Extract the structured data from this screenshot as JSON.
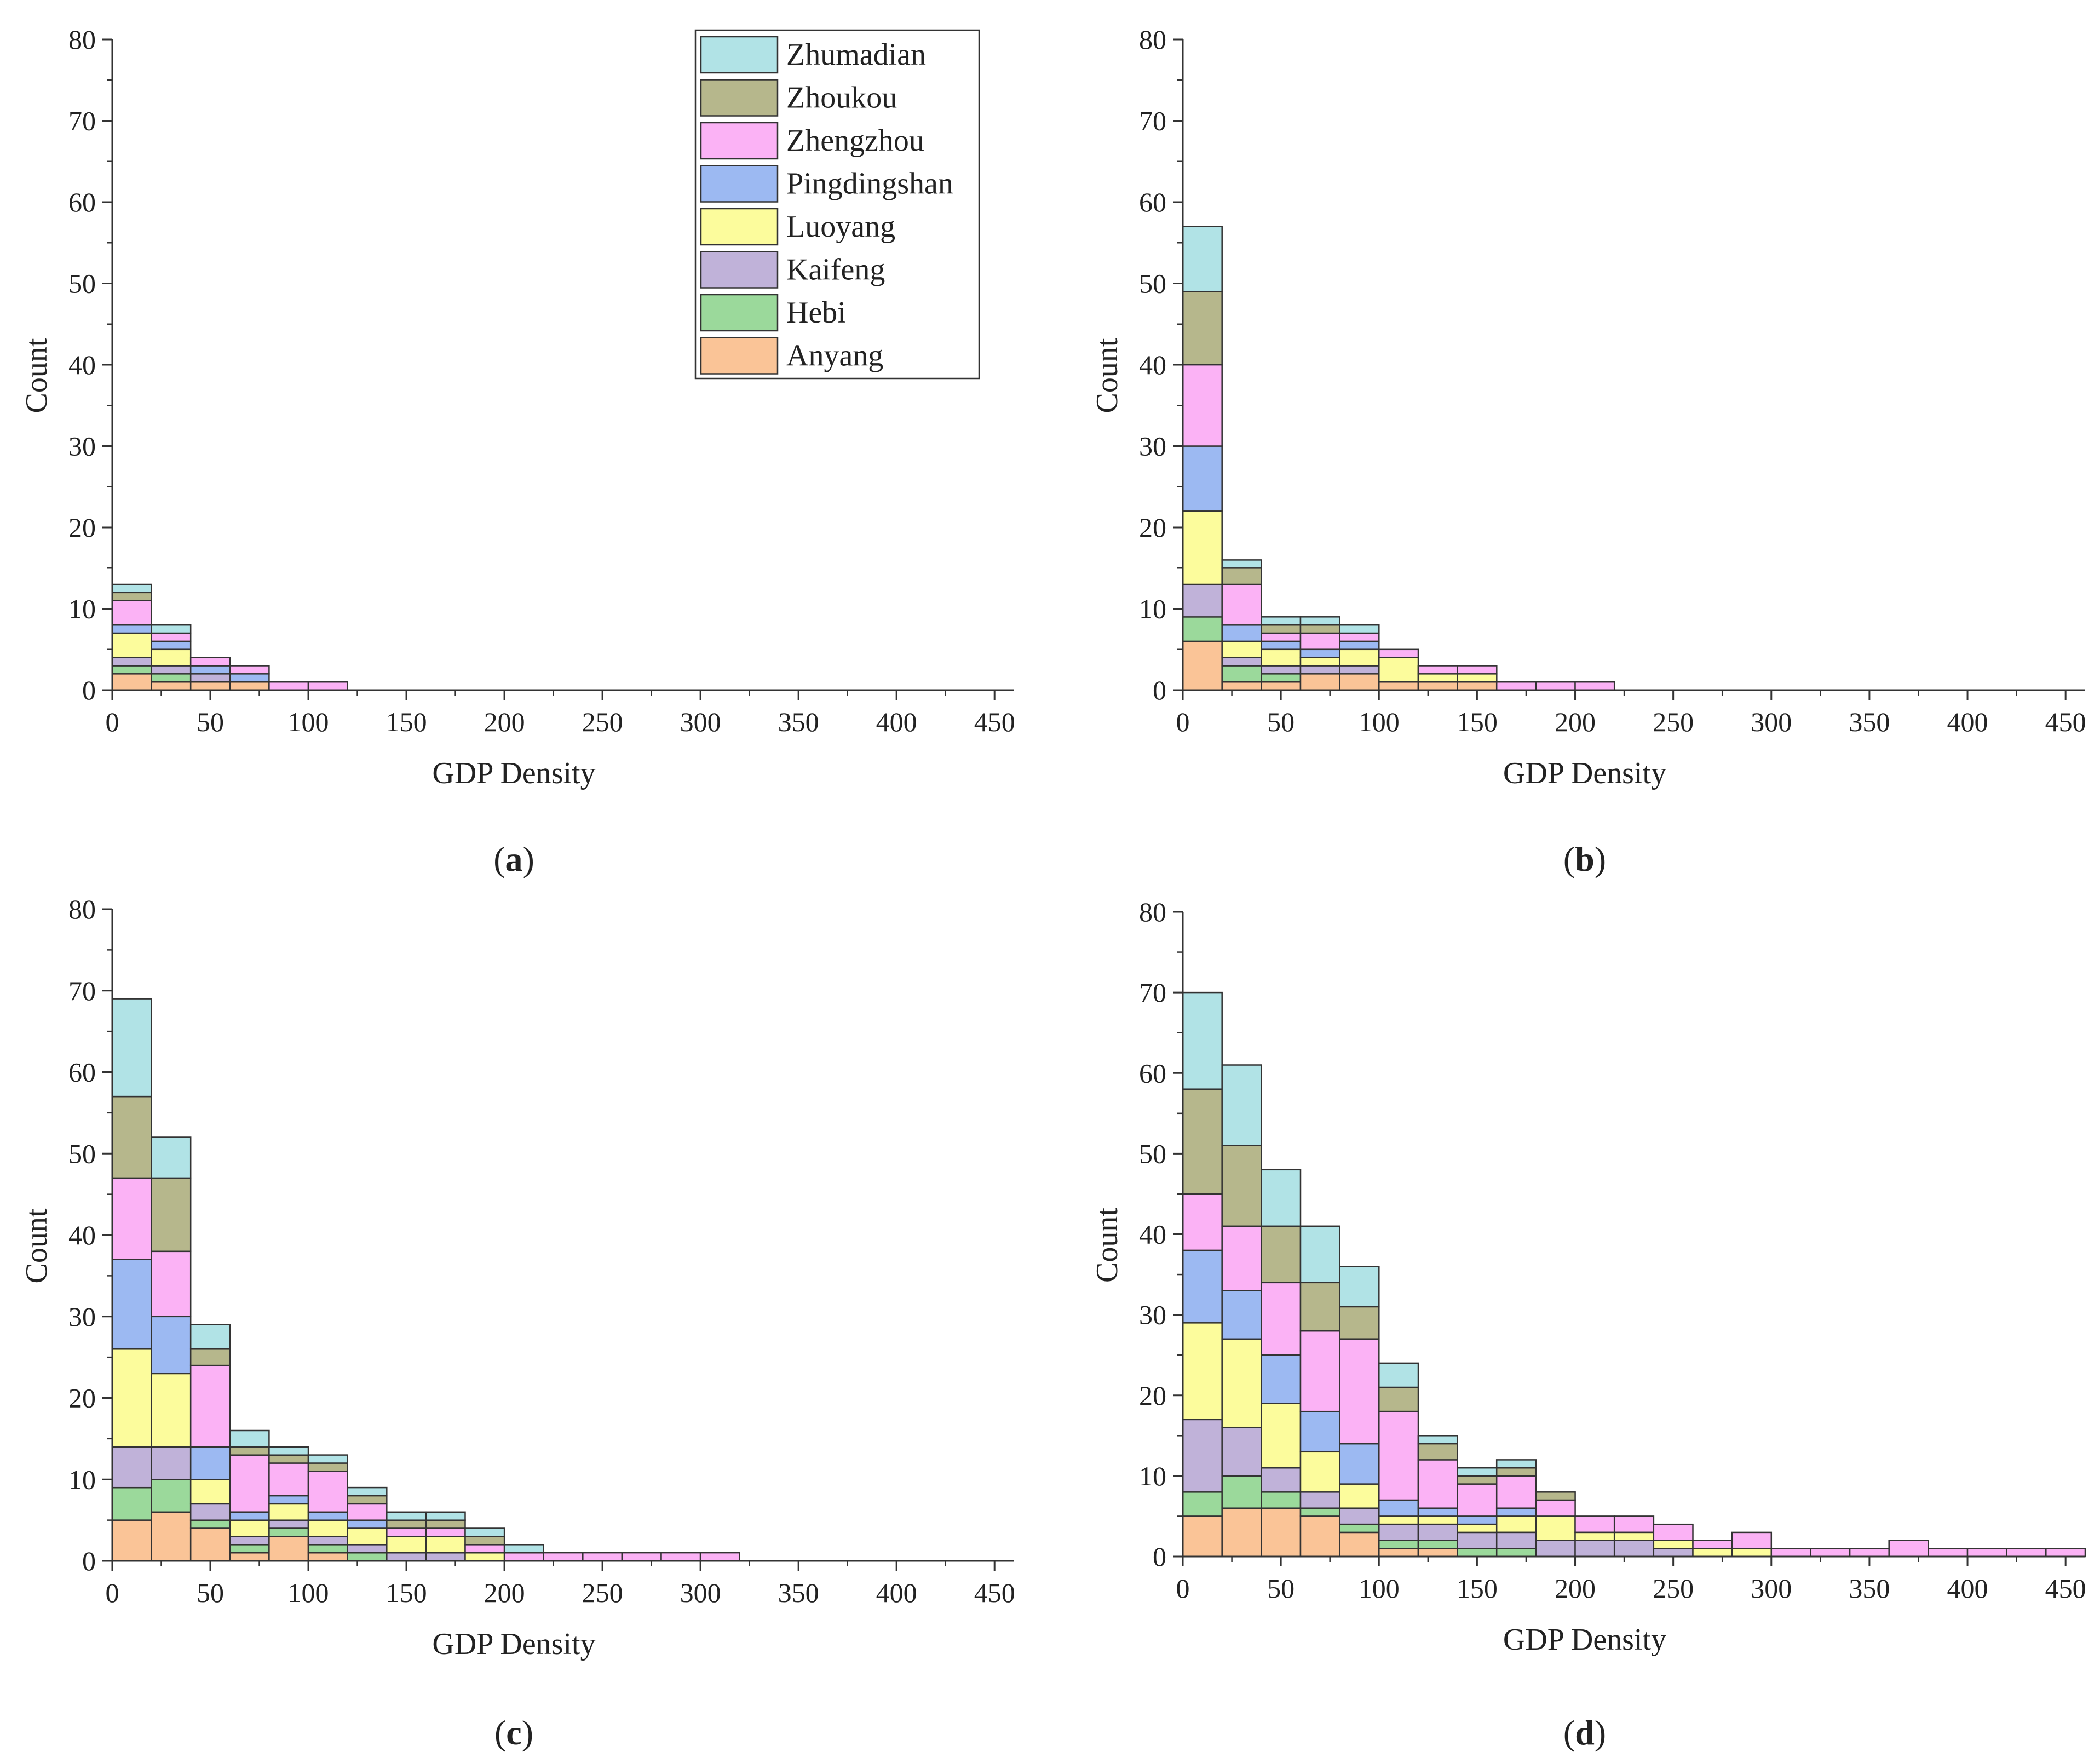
{
  "figure": {
    "colors": {
      "Anyang": "#FAC497",
      "Hebi": "#9BD99B",
      "Kaifeng": "#C0B2D9",
      "Luoyang": "#FCFC9C",
      "Pingdingshan": "#9CB9F2",
      "Zhengzhou": "#FBB2F5",
      "Zhoukou": "#B6B78C",
      "Zhumadian": "#B1E3E6"
    }
  },
  "chart_data": [
    {
      "type": "bar",
      "stacked": true,
      "panel": "a",
      "xlabel": "GDP Density",
      "ylabel": "Count",
      "xlim": [
        0,
        460
      ],
      "ylim": [
        0,
        80
      ],
      "xticks": [
        0,
        50,
        100,
        150,
        200,
        250,
        300,
        350,
        400,
        450
      ],
      "yticks": [
        0,
        10,
        20,
        30,
        40,
        50,
        60,
        70,
        80
      ],
      "bin_width": 20,
      "x": [
        10,
        30,
        50,
        70,
        90,
        110
      ],
      "legend": {
        "position": "top-right",
        "order": [
          "Zhumadian",
          "Zhoukou",
          "Zhengzhou",
          "Pingdingshan",
          "Luoyang",
          "Kaifeng",
          "Hebi",
          "Anyang"
        ]
      },
      "series": [
        {
          "name": "Anyang",
          "values": [
            2,
            1,
            1,
            1,
            0,
            0
          ]
        },
        {
          "name": "Hebi",
          "values": [
            1,
            1,
            0,
            0,
            0,
            0
          ]
        },
        {
          "name": "Kaifeng",
          "values": [
            1,
            1,
            1,
            0,
            0,
            0
          ]
        },
        {
          "name": "Luoyang",
          "values": [
            3,
            2,
            0,
            0,
            0,
            0
          ]
        },
        {
          "name": "Pingdingshan",
          "values": [
            1,
            1,
            1,
            1,
            0,
            0
          ]
        },
        {
          "name": "Zhengzhou",
          "values": [
            3,
            1,
            1,
            1,
            1,
            1
          ]
        },
        {
          "name": "Zhoukou",
          "values": [
            1,
            0,
            0,
            0,
            0,
            0
          ]
        },
        {
          "name": "Zhumadian",
          "values": [
            1,
            1,
            0,
            0,
            0,
            0
          ]
        }
      ]
    },
    {
      "type": "bar",
      "stacked": true,
      "panel": "b",
      "xlabel": "GDP Density",
      "ylabel": "Count",
      "xlim": [
        0,
        460
      ],
      "ylim": [
        0,
        80
      ],
      "xticks": [
        0,
        50,
        100,
        150,
        200,
        250,
        300,
        350,
        400,
        450
      ],
      "yticks": [
        0,
        10,
        20,
        30,
        40,
        50,
        60,
        70,
        80
      ],
      "bin_width": 20,
      "x": [
        10,
        30,
        50,
        70,
        90,
        110,
        130,
        150,
        170,
        190,
        210
      ],
      "series": [
        {
          "name": "Anyang",
          "values": [
            6,
            1,
            1,
            2,
            2,
            1,
            1,
            1,
            0,
            0,
            0
          ]
        },
        {
          "name": "Hebi",
          "values": [
            3,
            2,
            1,
            0,
            0,
            0,
            0,
            0,
            0,
            0,
            0
          ]
        },
        {
          "name": "Kaifeng",
          "values": [
            4,
            1,
            1,
            1,
            1,
            0,
            0,
            0,
            0,
            0,
            0
          ]
        },
        {
          "name": "Luoyang",
          "values": [
            9,
            2,
            2,
            1,
            2,
            3,
            1,
            1,
            0,
            0,
            0
          ]
        },
        {
          "name": "Pingdingshan",
          "values": [
            8,
            2,
            1,
            1,
            1,
            0,
            0,
            0,
            0,
            0,
            0
          ]
        },
        {
          "name": "Zhengzhou",
          "values": [
            10,
            5,
            1,
            2,
            1,
            1,
            1,
            1,
            1,
            1,
            1
          ]
        },
        {
          "name": "Zhoukou",
          "values": [
            9,
            2,
            1,
            1,
            0,
            0,
            0,
            0,
            0,
            0,
            0
          ]
        },
        {
          "name": "Zhumadian",
          "values": [
            8,
            1,
            1,
            1,
            1,
            0,
            0,
            0,
            0,
            0,
            0
          ]
        }
      ]
    },
    {
      "type": "bar",
      "stacked": true,
      "panel": "c",
      "xlabel": "GDP Density",
      "ylabel": "Count",
      "xlim": [
        0,
        460
      ],
      "ylim": [
        0,
        80
      ],
      "xticks": [
        0,
        50,
        100,
        150,
        200,
        250,
        300,
        350,
        400,
        450
      ],
      "yticks": [
        0,
        10,
        20,
        30,
        40,
        50,
        60,
        70,
        80
      ],
      "bin_width": 20,
      "x": [
        10,
        30,
        50,
        70,
        90,
        110,
        130,
        150,
        170,
        190,
        210,
        230,
        250,
        270,
        290,
        310
      ],
      "series": [
        {
          "name": "Anyang",
          "values": [
            5,
            6,
            4,
            1,
            3,
            1,
            0,
            0,
            0,
            0,
            0,
            0,
            0,
            0,
            0,
            0
          ]
        },
        {
          "name": "Hebi",
          "values": [
            4,
            4,
            1,
            1,
            1,
            1,
            1,
            0,
            0,
            0,
            0,
            0,
            0,
            0,
            0,
            0
          ]
        },
        {
          "name": "Kaifeng",
          "values": [
            5,
            4,
            2,
            1,
            1,
            1,
            1,
            1,
            1,
            0,
            0,
            0,
            0,
            0,
            0,
            0
          ]
        },
        {
          "name": "Luoyang",
          "values": [
            12,
            9,
            3,
            2,
            2,
            2,
            2,
            2,
            2,
            1,
            0,
            0,
            0,
            0,
            0,
            0
          ]
        },
        {
          "name": "Pingdingshan",
          "values": [
            11,
            7,
            4,
            1,
            1,
            1,
            1,
            0,
            0,
            0,
            0,
            0,
            0,
            0,
            0,
            0
          ]
        },
        {
          "name": "Zhengzhou",
          "values": [
            10,
            8,
            10,
            7,
            4,
            5,
            2,
            1,
            1,
            1,
            1,
            1,
            1,
            1,
            1,
            1
          ]
        },
        {
          "name": "Zhoukou",
          "values": [
            10,
            9,
            2,
            1,
            1,
            1,
            1,
            1,
            1,
            1,
            0,
            0,
            0,
            0,
            0,
            0
          ]
        },
        {
          "name": "Zhumadian",
          "values": [
            12,
            5,
            3,
            2,
            1,
            1,
            1,
            1,
            1,
            1,
            1,
            0,
            0,
            0,
            0,
            0
          ]
        }
      ]
    },
    {
      "type": "bar",
      "stacked": true,
      "panel": "d",
      "xlabel": "GDP Density",
      "ylabel": "Count",
      "xlim": [
        0,
        460
      ],
      "ylim": [
        0,
        80
      ],
      "xticks": [
        0,
        50,
        100,
        150,
        200,
        250,
        300,
        350,
        400,
        450
      ],
      "yticks": [
        0,
        10,
        20,
        30,
        40,
        50,
        60,
        70,
        80
      ],
      "bin_width": 20,
      "x": [
        10,
        30,
        50,
        70,
        90,
        110,
        130,
        150,
        170,
        190,
        210,
        230,
        250,
        270,
        290,
        310,
        330,
        350,
        370,
        390,
        410,
        430,
        450
      ],
      "series": [
        {
          "name": "Anyang",
          "values": [
            5,
            6,
            6,
            5,
            3,
            1,
            1,
            0,
            0,
            0,
            0,
            0,
            0,
            0,
            0,
            0,
            0,
            0,
            0,
            0,
            0,
            0,
            0
          ]
        },
        {
          "name": "Hebi",
          "values": [
            3,
            4,
            2,
            1,
            1,
            1,
            1,
            1,
            1,
            0,
            0,
            0,
            0,
            0,
            0,
            0,
            0,
            0,
            0,
            0,
            0,
            0,
            0
          ]
        },
        {
          "name": "Kaifeng",
          "values": [
            9,
            6,
            3,
            2,
            2,
            2,
            2,
            2,
            2,
            2,
            2,
            2,
            1,
            0,
            0,
            0,
            0,
            0,
            0,
            0,
            0,
            0,
            0
          ]
        },
        {
          "name": "Luoyang",
          "values": [
            12,
            11,
            8,
            5,
            3,
            1,
            1,
            1,
            2,
            3,
            1,
            1,
            1,
            1,
            1,
            0,
            0,
            0,
            0,
            0,
            0,
            0,
            0
          ]
        },
        {
          "name": "Pingdingshan",
          "values": [
            9,
            6,
            6,
            5,
            5,
            2,
            1,
            1,
            1,
            0,
            0,
            0,
            0,
            0,
            0,
            0,
            0,
            0,
            0,
            0,
            0,
            0,
            0
          ]
        },
        {
          "name": "Zhengzhou",
          "values": [
            7,
            8,
            9,
            10,
            13,
            11,
            6,
            4,
            4,
            2,
            2,
            2,
            2,
            1,
            2,
            1,
            1,
            1,
            2,
            1,
            1,
            1,
            1
          ]
        },
        {
          "name": "Zhoukou",
          "values": [
            13,
            10,
            7,
            6,
            4,
            3,
            2,
            1,
            1,
            1,
            0,
            0,
            0,
            0,
            0,
            0,
            0,
            0,
            0,
            0,
            0,
            0,
            0
          ]
        },
        {
          "name": "Zhumadian",
          "values": [
            12,
            10,
            7,
            7,
            5,
            3,
            1,
            1,
            1,
            0,
            0,
            0,
            0,
            0,
            0,
            0,
            0,
            0,
            0,
            0,
            0,
            0,
            0
          ]
        }
      ]
    }
  ]
}
